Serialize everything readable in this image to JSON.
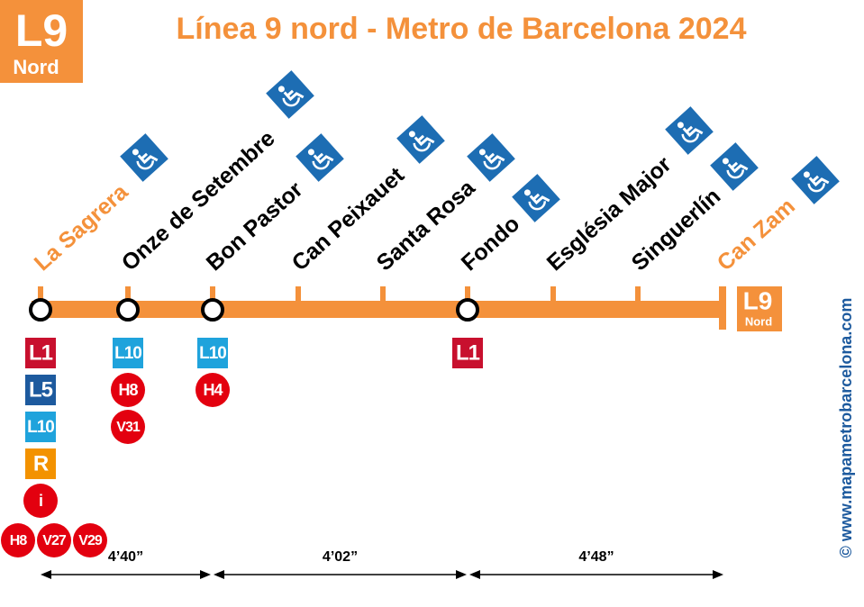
{
  "header": {
    "logo_line": "L9",
    "logo_sub": "Nord",
    "title": "Línea 9 nord - Metro de Barcelona 2024"
  },
  "stations": [
    {
      "name": "La Sagrera",
      "connections": [
        {
          "label": "L1",
          "shape": "square",
          "color": "#c8102e"
        },
        {
          "label": "L5",
          "shape": "square",
          "color": "#1d5a9e"
        },
        {
          "label": "L10",
          "shape": "square",
          "color": "#1fa3dc"
        },
        {
          "label": "R",
          "shape": "square",
          "color": "#f39200"
        },
        {
          "label": "i",
          "shape": "circle",
          "color": "#e3000f"
        }
      ],
      "buses": [
        "H8",
        "V27",
        "V29"
      ]
    },
    {
      "name": "Onze de Setembre",
      "connections": [
        {
          "label": "L10",
          "shape": "square",
          "color": "#1fa3dc"
        },
        {
          "label": "H8",
          "shape": "circle",
          "color": "#e3000f"
        },
        {
          "label": "V31",
          "shape": "circle",
          "color": "#e3000f"
        }
      ]
    },
    {
      "name": "Bon Pastor",
      "connections": [
        {
          "label": "L10",
          "shape": "square",
          "color": "#1fa3dc"
        },
        {
          "label": "H4",
          "shape": "circle",
          "color": "#e3000f"
        }
      ]
    },
    {
      "name": "Can Peixauet"
    },
    {
      "name": "Santa Rosa"
    },
    {
      "name": "Fondo",
      "connections": [
        {
          "label": "L1",
          "shape": "square",
          "color": "#c8102e"
        }
      ]
    },
    {
      "name": "Església Major"
    },
    {
      "name": "Singuerlín"
    },
    {
      "name": "Can Zam"
    }
  ],
  "end_logo": {
    "line": "L9",
    "sub": "Nord"
  },
  "times": [
    "4’40”",
    "4’02”",
    "4’48”"
  ],
  "credit": "© www.mapametrobarcelona.com"
}
